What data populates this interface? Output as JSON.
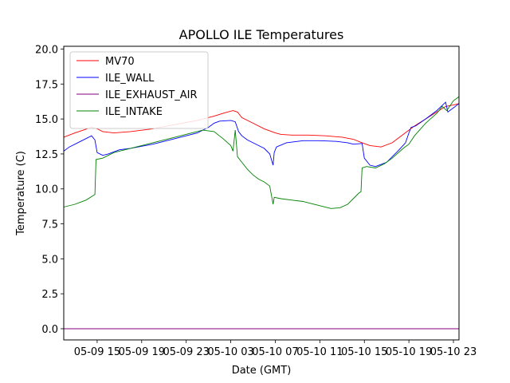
{
  "chart_data": {
    "type": "line",
    "title": "APOLLO ILE Temperatures",
    "xlabel": "Date (GMT)",
    "ylabel": "Temperature (C)",
    "x_unit": "hours since 05-09 00:00 GMT",
    "xlim": [
      12.0,
      47.5
    ],
    "ylim": [
      -0.8,
      20.2
    ],
    "xticks": [
      {
        "value": 15,
        "label": "05-09 15"
      },
      {
        "value": 19,
        "label": "05-09 19"
      },
      {
        "value": 23,
        "label": "05-09 23"
      },
      {
        "value": 27,
        "label": "05-10 03"
      },
      {
        "value": 31,
        "label": "05-10 07"
      },
      {
        "value": 35,
        "label": "05-10 11"
      },
      {
        "value": 39,
        "label": "05-10 15"
      },
      {
        "value": 43,
        "label": "05-10 19"
      },
      {
        "value": 47,
        "label": "05-10 23"
      }
    ],
    "yticks": [
      {
        "value": 0.0,
        "label": "0.0"
      },
      {
        "value": 2.5,
        "label": "2.5"
      },
      {
        "value": 5.0,
        "label": "5.0"
      },
      {
        "value": 7.5,
        "label": "7.5"
      },
      {
        "value": 10.0,
        "label": "10.0"
      },
      {
        "value": 12.5,
        "label": "12.5"
      },
      {
        "value": 15.0,
        "label": "15.0"
      },
      {
        "value": 17.5,
        "label": "17.5"
      },
      {
        "value": 20.0,
        "label": "20.0"
      }
    ],
    "legend_position": "top-left",
    "series": [
      {
        "name": "MV70",
        "color": "#ff0000",
        "points": [
          [
            12.0,
            13.7
          ],
          [
            13.0,
            14.0
          ],
          [
            14.5,
            14.4
          ],
          [
            15.0,
            14.3
          ],
          [
            15.5,
            14.1
          ],
          [
            16.5,
            14.0
          ],
          [
            18.0,
            14.1
          ],
          [
            20.0,
            14.3
          ],
          [
            22.0,
            14.6
          ],
          [
            24.0,
            14.9
          ],
          [
            25.5,
            15.2
          ],
          [
            26.5,
            15.45
          ],
          [
            27.2,
            15.6
          ],
          [
            27.6,
            15.5
          ],
          [
            28.0,
            15.1
          ],
          [
            29.0,
            14.7
          ],
          [
            30.0,
            14.3
          ],
          [
            31.0,
            14.0
          ],
          [
            31.5,
            13.9
          ],
          [
            32.5,
            13.85
          ],
          [
            34.0,
            13.85
          ],
          [
            35.5,
            13.8
          ],
          [
            37.0,
            13.7
          ],
          [
            38.0,
            13.55
          ],
          [
            38.8,
            13.3
          ],
          [
            39.5,
            13.1
          ],
          [
            40.5,
            13.0
          ],
          [
            41.5,
            13.3
          ],
          [
            42.5,
            13.9
          ],
          [
            43.5,
            14.5
          ],
          [
            44.5,
            15.0
          ],
          [
            45.5,
            15.5
          ],
          [
            46.3,
            15.9
          ],
          [
            47.0,
            16.0
          ],
          [
            47.5,
            16.1
          ]
        ]
      },
      {
        "name": "ILE_WALL",
        "color": "#0000ff",
        "points": [
          [
            12.0,
            12.7
          ],
          [
            12.5,
            13.0
          ],
          [
            13.5,
            13.4
          ],
          [
            14.5,
            13.8
          ],
          [
            14.8,
            13.5
          ],
          [
            15.0,
            12.6
          ],
          [
            15.5,
            12.4
          ],
          [
            16.0,
            12.5
          ],
          [
            17.0,
            12.8
          ],
          [
            18.0,
            12.9
          ],
          [
            20.0,
            13.2
          ],
          [
            22.0,
            13.6
          ],
          [
            24.0,
            14.0
          ],
          [
            25.0,
            14.4
          ],
          [
            25.5,
            14.7
          ],
          [
            26.0,
            14.85
          ],
          [
            27.0,
            14.9
          ],
          [
            27.4,
            14.8
          ],
          [
            27.7,
            14.1
          ],
          [
            28.0,
            13.8
          ],
          [
            28.5,
            13.5
          ],
          [
            29.0,
            13.3
          ],
          [
            29.5,
            13.1
          ],
          [
            30.0,
            12.9
          ],
          [
            30.5,
            12.5
          ],
          [
            30.8,
            11.7
          ],
          [
            30.9,
            12.6
          ],
          [
            31.1,
            13.0
          ],
          [
            32.0,
            13.3
          ],
          [
            33.5,
            13.45
          ],
          [
            35.0,
            13.45
          ],
          [
            36.5,
            13.4
          ],
          [
            37.5,
            13.3
          ],
          [
            38.0,
            13.2
          ],
          [
            38.8,
            13.25
          ],
          [
            39.0,
            12.2
          ],
          [
            39.5,
            11.7
          ],
          [
            40.0,
            11.6
          ],
          [
            41.0,
            11.9
          ],
          [
            42.0,
            12.7
          ],
          [
            42.7,
            13.3
          ],
          [
            43.0,
            14.0
          ],
          [
            43.2,
            14.4
          ],
          [
            43.6,
            14.5
          ],
          [
            44.5,
            15.0
          ],
          [
            45.5,
            15.6
          ],
          [
            46.3,
            16.2
          ],
          [
            46.5,
            15.5
          ],
          [
            47.0,
            15.8
          ],
          [
            47.5,
            16.1
          ]
        ]
      },
      {
        "name": "ILE_EXHAUST_AIR",
        "color": "#800080",
        "points": [
          [
            12.0,
            0.0
          ],
          [
            47.5,
            0.0
          ]
        ]
      },
      {
        "name": "ILE_INTAKE",
        "color": "#008000",
        "points": [
          [
            12.0,
            8.7
          ],
          [
            13.0,
            8.9
          ],
          [
            14.0,
            9.2
          ],
          [
            14.8,
            9.6
          ],
          [
            14.9,
            12.1
          ],
          [
            15.5,
            12.2
          ],
          [
            16.5,
            12.6
          ],
          [
            18.0,
            12.9
          ],
          [
            20.0,
            13.3
          ],
          [
            22.0,
            13.7
          ],
          [
            23.5,
            14.0
          ],
          [
            24.5,
            14.2
          ],
          [
            25.5,
            14.1
          ],
          [
            26.3,
            13.6
          ],
          [
            27.0,
            13.1
          ],
          [
            27.2,
            12.7
          ],
          [
            27.4,
            14.2
          ],
          [
            27.6,
            12.3
          ],
          [
            28.0,
            11.9
          ],
          [
            28.5,
            11.4
          ],
          [
            29.0,
            11.0
          ],
          [
            29.5,
            10.7
          ],
          [
            30.0,
            10.5
          ],
          [
            30.5,
            10.2
          ],
          [
            30.8,
            8.9
          ],
          [
            30.9,
            9.4
          ],
          [
            31.5,
            9.3
          ],
          [
            32.5,
            9.2
          ],
          [
            33.5,
            9.1
          ],
          [
            34.0,
            9.0
          ],
          [
            35.0,
            8.8
          ],
          [
            36.0,
            8.6
          ],
          [
            36.8,
            8.65
          ],
          [
            37.5,
            8.9
          ],
          [
            38.0,
            9.3
          ],
          [
            38.5,
            9.7
          ],
          [
            38.7,
            9.8
          ],
          [
            38.8,
            11.5
          ],
          [
            39.2,
            11.6
          ],
          [
            40.0,
            11.5
          ],
          [
            40.8,
            11.8
          ],
          [
            41.5,
            12.2
          ],
          [
            42.5,
            12.9
          ],
          [
            43.0,
            13.2
          ],
          [
            43.5,
            13.8
          ],
          [
            44.5,
            14.7
          ],
          [
            45.5,
            15.4
          ],
          [
            46.0,
            15.9
          ],
          [
            46.4,
            15.6
          ],
          [
            47.0,
            16.3
          ],
          [
            47.5,
            16.6
          ]
        ]
      }
    ]
  }
}
